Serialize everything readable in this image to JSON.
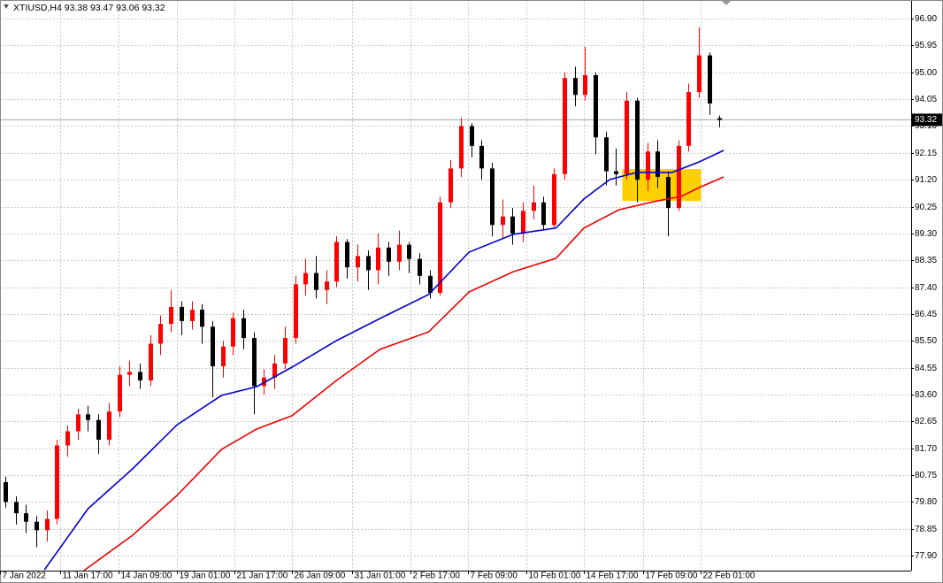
{
  "chart_data": {
    "type": "candlestick",
    "title": "XTIUSD,H4  93.38 93.47 93.06 93.32",
    "ylim": [
      77.37,
      97.56
    ],
    "xlim": [
      -0.5,
      87.5
    ],
    "grid": true,
    "up_color": "#ff0000",
    "down_color": "#000000",
    "yticks": [
      {
        "value": 96.9,
        "label": "96.90"
      },
      95.95,
      {
        "value": 95,
        "label": "95.00"
      },
      94.05,
      {
        "value": 93.1,
        "label": "93.10"
      },
      92.15,
      {
        "value": 91.2,
        "label": "91.20"
      },
      90.25,
      {
        "value": 89.3,
        "label": "89.30"
      },
      88.35,
      {
        "value": 87.4,
        "label": "87.40"
      },
      86.45,
      {
        "value": 85.5,
        "label": "85.50"
      },
      84.55,
      {
        "value": 83.6,
        "label": "83.60"
      },
      82.65,
      {
        "value": 81.7,
        "label": "81.70"
      },
      80.75,
      {
        "value": 79.8,
        "label": "79.80"
      },
      78.85,
      {
        "value": 77.9,
        "label": "77.90"
      }
    ],
    "xticks": [
      {
        "value": -0.5,
        "label": "7 Jan 2022"
      },
      {
        "value": 5.3,
        "label": "11 Jan 17:00"
      },
      {
        "value": 10.95,
        "label": "14 Jan 09:00"
      },
      {
        "value": 16.6,
        "label": "19 Jan 01:00"
      },
      {
        "value": 22.1,
        "label": "21 Jan 17:00"
      },
      {
        "value": 27.7,
        "label": "26 Jan 09:00"
      },
      {
        "value": 33.5,
        "label": "31 Jan 01:00"
      },
      {
        "value": 39.1,
        "label": "2 Feb 17:00"
      },
      {
        "value": 44.7,
        "label": "7 Feb 09:00"
      },
      {
        "value": 50.3,
        "label": "10 Feb 01:00"
      },
      {
        "value": 55.9,
        "label": "14 Feb 17:00"
      },
      {
        "value": 61.6,
        "label": "17 Feb 09:00"
      },
      {
        "value": 67.2,
        "label": "22 Feb 01:00"
      }
    ],
    "ohlc": [
      [
        80.5,
        80.7,
        79.6,
        79.8
      ],
      [
        79.8,
        80.0,
        79.0,
        79.4
      ],
      [
        79.4,
        79.7,
        78.7,
        79.1
      ],
      [
        79.1,
        79.3,
        78.2,
        78.8
      ],
      [
        78.8,
        79.5,
        78.4,
        79.2
      ],
      [
        79.2,
        82.0,
        79.0,
        81.8
      ],
      [
        81.8,
        82.5,
        81.4,
        82.3
      ],
      [
        82.3,
        83.1,
        82.0,
        82.9
      ],
      [
        82.9,
        83.2,
        82.3,
        82.7
      ],
      [
        82.7,
        82.9,
        81.5,
        82.0
      ],
      [
        82.0,
        83.3,
        81.8,
        83.0
      ],
      [
        83.0,
        84.6,
        82.8,
        84.3
      ],
      [
        84.3,
        84.8,
        83.9,
        84.4
      ],
      [
        84.4,
        84.7,
        83.8,
        84.1
      ],
      [
        84.1,
        85.7,
        83.9,
        85.4
      ],
      [
        85.4,
        86.4,
        85.0,
        86.1
      ],
      [
        86.1,
        87.3,
        85.8,
        86.7
      ],
      [
        86.7,
        86.9,
        85.7,
        86.2
      ],
      [
        86.2,
        86.9,
        85.9,
        86.6
      ],
      [
        86.6,
        86.8,
        85.4,
        86.0
      ],
      [
        86.0,
        86.2,
        83.5,
        84.6
      ],
      [
        84.6,
        85.5,
        84.2,
        85.3
      ],
      [
        85.3,
        86.5,
        85.0,
        86.3
      ],
      [
        86.3,
        86.6,
        85.2,
        85.6
      ],
      [
        85.6,
        85.8,
        82.9,
        83.9
      ],
      [
        83.9,
        84.5,
        83.6,
        84.2
      ],
      [
        84.2,
        85.0,
        83.8,
        84.7
      ],
      [
        84.7,
        86.0,
        84.5,
        85.6
      ],
      [
        85.6,
        87.8,
        85.4,
        87.5
      ],
      [
        87.5,
        88.4,
        87.1,
        87.9
      ],
      [
        87.9,
        88.5,
        87.0,
        87.3
      ],
      [
        87.3,
        88.0,
        86.8,
        87.6
      ],
      [
        87.6,
        89.2,
        87.4,
        89.0
      ],
      [
        89.0,
        89.1,
        87.7,
        88.1
      ],
      [
        88.1,
        88.9,
        87.6,
        88.5
      ],
      [
        88.5,
        88.7,
        87.3,
        88.0
      ],
      [
        88.0,
        89.3,
        87.5,
        88.8
      ],
      [
        88.8,
        89.0,
        87.8,
        88.3
      ],
      [
        88.3,
        89.4,
        88.0,
        88.9
      ],
      [
        88.9,
        89.0,
        87.9,
        88.4
      ],
      [
        88.4,
        88.6,
        87.5,
        87.8
      ],
      [
        87.8,
        88.0,
        87.0,
        87.2
      ],
      [
        87.2,
        90.6,
        87.1,
        90.4
      ],
      [
        90.4,
        91.9,
        90.2,
        91.6
      ],
      [
        91.6,
        93.4,
        91.3,
        93.1
      ],
      [
        93.1,
        93.2,
        92.0,
        92.4
      ],
      [
        92.4,
        92.6,
        91.2,
        91.6
      ],
      [
        91.6,
        91.8,
        89.2,
        89.6
      ],
      [
        89.6,
        90.5,
        89.1,
        89.9
      ],
      [
        89.9,
        90.2,
        88.9,
        89.3
      ],
      [
        89.3,
        90.4,
        89.0,
        90.1
      ],
      [
        90.1,
        91.0,
        89.8,
        90.4
      ],
      [
        90.4,
        90.6,
        89.4,
        89.6
      ],
      [
        89.6,
        91.6,
        89.5,
        91.4
      ],
      [
        91.4,
        95.0,
        91.2,
        94.8
      ],
      [
        94.8,
        95.2,
        93.8,
        94.2
      ],
      [
        94.2,
        95.9,
        94.0,
        94.9
      ],
      [
        94.9,
        95.0,
        92.1,
        92.7
      ],
      [
        92.7,
        92.9,
        91.0,
        91.5
      ],
      [
        91.5,
        92.3,
        91.0,
        91.4
      ],
      [
        91.4,
        94.3,
        91.2,
        94.0
      ],
      [
        94.0,
        94.1,
        90.4,
        91.2
      ],
      [
        91.2,
        92.5,
        90.8,
        92.2
      ],
      [
        92.2,
        92.6,
        90.9,
        91.3
      ],
      [
        91.3,
        91.5,
        89.2,
        90.2
      ],
      [
        90.2,
        92.6,
        90.1,
        92.4
      ],
      [
        92.4,
        94.6,
        92.2,
        94.3
      ],
      [
        94.3,
        96.6,
        94.1,
        95.6
      ],
      [
        95.6,
        95.7,
        93.5,
        93.9
      ],
      [
        93.38,
        93.47,
        93.06,
        93.32
      ]
    ],
    "series": [
      {
        "color": "#0000cc",
        "x": [
          3.8,
          8.0,
          12.3,
          16.6,
          20.9,
          24.3,
          27.7,
          32.0,
          36.2,
          40.9,
          44.8,
          49.1,
          53.2,
          55.9,
          58.4,
          61.0,
          64.4,
          67.0,
          69.4
        ],
        "values": [
          77.4,
          79.56,
          80.97,
          82.53,
          83.57,
          83.88,
          84.57,
          85.51,
          86.29,
          87.14,
          88.64,
          89.27,
          89.49,
          90.52,
          91.21,
          91.46,
          91.46,
          91.83,
          92.24
        ]
      },
      {
        "color": "#ee0000",
        "x": [
          7.6,
          12.3,
          16.6,
          20.9,
          24.3,
          27.7,
          32.0,
          36.2,
          40.9,
          44.8,
          49.1,
          53.2,
          55.9,
          59.3,
          62.7,
          65.3,
          67.0,
          69.4
        ],
        "values": [
          77.37,
          78.62,
          80.03,
          81.66,
          82.38,
          82.85,
          84.1,
          85.2,
          85.82,
          87.23,
          87.95,
          88.42,
          89.49,
          90.14,
          90.43,
          90.61,
          90.92,
          91.3
        ]
      }
    ],
    "current_price": 93.32,
    "highlight": {
      "x": [
        59.6,
        67.2
      ],
      "y": [
        90.45,
        91.58
      ],
      "color": "#ffd000"
    }
  }
}
